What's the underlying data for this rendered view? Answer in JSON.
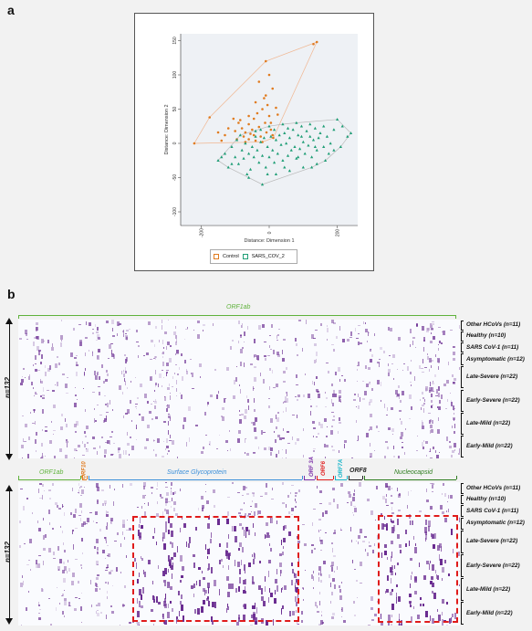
{
  "panel_a": {
    "letter": "a",
    "chart_data": {
      "type": "scatter",
      "xlabel": "Distance: Dimension 1",
      "ylabel": "Distance: Dimension 2",
      "xlim": [
        -260,
        260
      ],
      "ylim": [
        -120,
        160
      ],
      "xticks": [
        -200,
        0,
        200
      ],
      "yticks": [
        150,
        100,
        50,
        0,
        -50,
        -100
      ],
      "series": [
        {
          "name": "Control",
          "color": "#e07b1f",
          "marker": "circle",
          "points": [
            [
              -220,
              0
            ],
            [
              -175,
              38
            ],
            [
              -150,
              16
            ],
            [
              -120,
              22
            ],
            [
              -100,
              18
            ],
            [
              -95,
              6
            ],
            [
              -80,
              22
            ],
            [
              -75,
              10
            ],
            [
              -70,
              2
            ],
            [
              -60,
              28
            ],
            [
              -55,
              14
            ],
            [
              -45,
              36
            ],
            [
              -40,
              60
            ],
            [
              -35,
              44
            ],
            [
              -30,
              24
            ],
            [
              -25,
              10
            ],
            [
              -20,
              50
            ],
            [
              -15,
              66
            ],
            [
              -12,
              30
            ],
            [
              -8,
              16
            ],
            [
              -5,
              56
            ],
            [
              0,
              40
            ],
            [
              5,
              20
            ],
            [
              10,
              12
            ],
            [
              12,
              8
            ],
            [
              20,
              52
            ],
            [
              25,
              42
            ],
            [
              -30,
              90
            ],
            [
              -10,
              70
            ],
            [
              -60,
              40
            ],
            [
              -90,
              30
            ],
            [
              -105,
              36
            ],
            [
              -60,
              6
            ],
            [
              -40,
              4
            ],
            [
              -20,
              2
            ],
            [
              0,
              100
            ],
            [
              10,
              80
            ],
            [
              -50,
              20
            ],
            [
              -70,
              16
            ],
            [
              -130,
              12
            ],
            [
              -140,
              4
            ],
            [
              130,
              145
            ],
            [
              140,
              148
            ],
            [
              -10,
              120
            ],
            [
              -85,
              34
            ],
            [
              5,
              30
            ],
            [
              -45,
              12
            ]
          ]
        },
        {
          "name": "SARS_COV_2",
          "color": "#1f9e76",
          "marker": "triangle",
          "points": [
            [
              -150,
              -25
            ],
            [
              -130,
              -15
            ],
            [
              -120,
              -35
            ],
            [
              -110,
              -5
            ],
            [
              -100,
              -20
            ],
            [
              -95,
              5
            ],
            [
              -90,
              -30
            ],
            [
              -80,
              -10
            ],
            [
              -75,
              -22
            ],
            [
              -70,
              0
            ],
            [
              -60,
              -15
            ],
            [
              -55,
              -38
            ],
            [
              -50,
              -5
            ],
            [
              -45,
              -20
            ],
            [
              -40,
              10
            ],
            [
              -35,
              -10
            ],
            [
              -30,
              -28
            ],
            [
              -25,
              2
            ],
            [
              -20,
              -18
            ],
            [
              -15,
              8
            ],
            [
              -10,
              -35
            ],
            [
              -5,
              -5
            ],
            [
              0,
              -20
            ],
            [
              5,
              10
            ],
            [
              10,
              -10
            ],
            [
              15,
              -28
            ],
            [
              20,
              5
            ],
            [
              25,
              -15
            ],
            [
              30,
              12
            ],
            [
              35,
              -2
            ],
            [
              40,
              -25
            ],
            [
              45,
              15
            ],
            [
              50,
              0
            ],
            [
              55,
              -18
            ],
            [
              60,
              8
            ],
            [
              65,
              -10
            ],
            [
              70,
              20
            ],
            [
              75,
              -5
            ],
            [
              80,
              -22
            ],
            [
              85,
              12
            ],
            [
              90,
              -8
            ],
            [
              95,
              25
            ],
            [
              100,
              2
            ],
            [
              105,
              -15
            ],
            [
              110,
              18
            ],
            [
              115,
              -3
            ],
            [
              120,
              10
            ],
            [
              125,
              -20
            ],
            [
              130,
              5
            ],
            [
              135,
              22
            ],
            [
              140,
              -10
            ],
            [
              145,
              8
            ],
            [
              150,
              15
            ],
            [
              160,
              -5
            ],
            [
              170,
              10
            ],
            [
              180,
              0
            ],
            [
              190,
              20
            ],
            [
              200,
              35
            ],
            [
              215,
              25
            ],
            [
              230,
              10
            ],
            [
              -60,
              -50
            ],
            [
              -20,
              -60
            ],
            [
              20,
              -45
            ],
            [
              60,
              -40
            ],
            [
              100,
              -35
            ],
            [
              140,
              -30
            ],
            [
              -110,
              -30
            ],
            [
              -140,
              -20
            ],
            [
              0,
              25
            ],
            [
              -40,
              18
            ],
            [
              40,
              28
            ],
            [
              80,
              30
            ],
            [
              120,
              28
            ],
            [
              160,
              25
            ],
            [
              -85,
              12
            ],
            [
              -25,
              20
            ],
            [
              15,
              20
            ],
            [
              55,
              22
            ],
            [
              95,
              10
            ],
            [
              135,
              -5
            ],
            [
              175,
              -15
            ],
            [
              210,
              -5
            ],
            [
              -65,
              -45
            ],
            [
              -5,
              -45
            ],
            [
              45,
              -35
            ],
            [
              85,
              -20
            ],
            [
              125,
              -35
            ],
            [
              165,
              -25
            ],
            [
              190,
              -10
            ],
            [
              240,
              15
            ]
          ]
        }
      ],
      "hulls": true,
      "legend": "bottom"
    }
  },
  "panel_b": {
    "letter": "b",
    "top": {
      "gene_label": "ORF1ab",
      "gene_color": "#5fb23b",
      "n_label": "n=132",
      "groups": [
        "Other HCoVs (n=11)",
        "Healthy (n=10)",
        "SARS CoV-1 (n=11)",
        "Asymptomatic (n=12)",
        "Late-Severe (n=22)",
        "Early-Severe (n=22)",
        "Late-Mild (n=22)",
        "Early-Mild (n=22)"
      ]
    },
    "bottom": {
      "genes": [
        {
          "name": "ORF1ab",
          "color": "#5fb23b"
        },
        {
          "name": "ORF10",
          "color": "#e07b1f"
        },
        {
          "name": "Surface Glycoprotein",
          "color": "#3b8fd9"
        },
        {
          "name": "ORF 3A",
          "color": "#7b2fa8"
        },
        {
          "name": "ORF6",
          "color": "#e01b1b"
        },
        {
          "name": "ORF7A",
          "color": "#17b5c9"
        },
        {
          "name": "ORF8",
          "color": "#222222"
        },
        {
          "name": "Nucleocapsid",
          "color": "#2e7d1f"
        }
      ],
      "n_label": "n=132",
      "groups": [
        "Other HCoVs (n=11)",
        "Healthy (n=10)",
        "SARS CoV-1 (n=11)",
        "Asymptomatic (n=12)",
        "Late-Severe (n=22)",
        "Early-Severe (n=22)",
        "Late-Mild (n=22)",
        "Early-Mild (n=22)"
      ]
    },
    "heat_color": "#6a2c91"
  }
}
